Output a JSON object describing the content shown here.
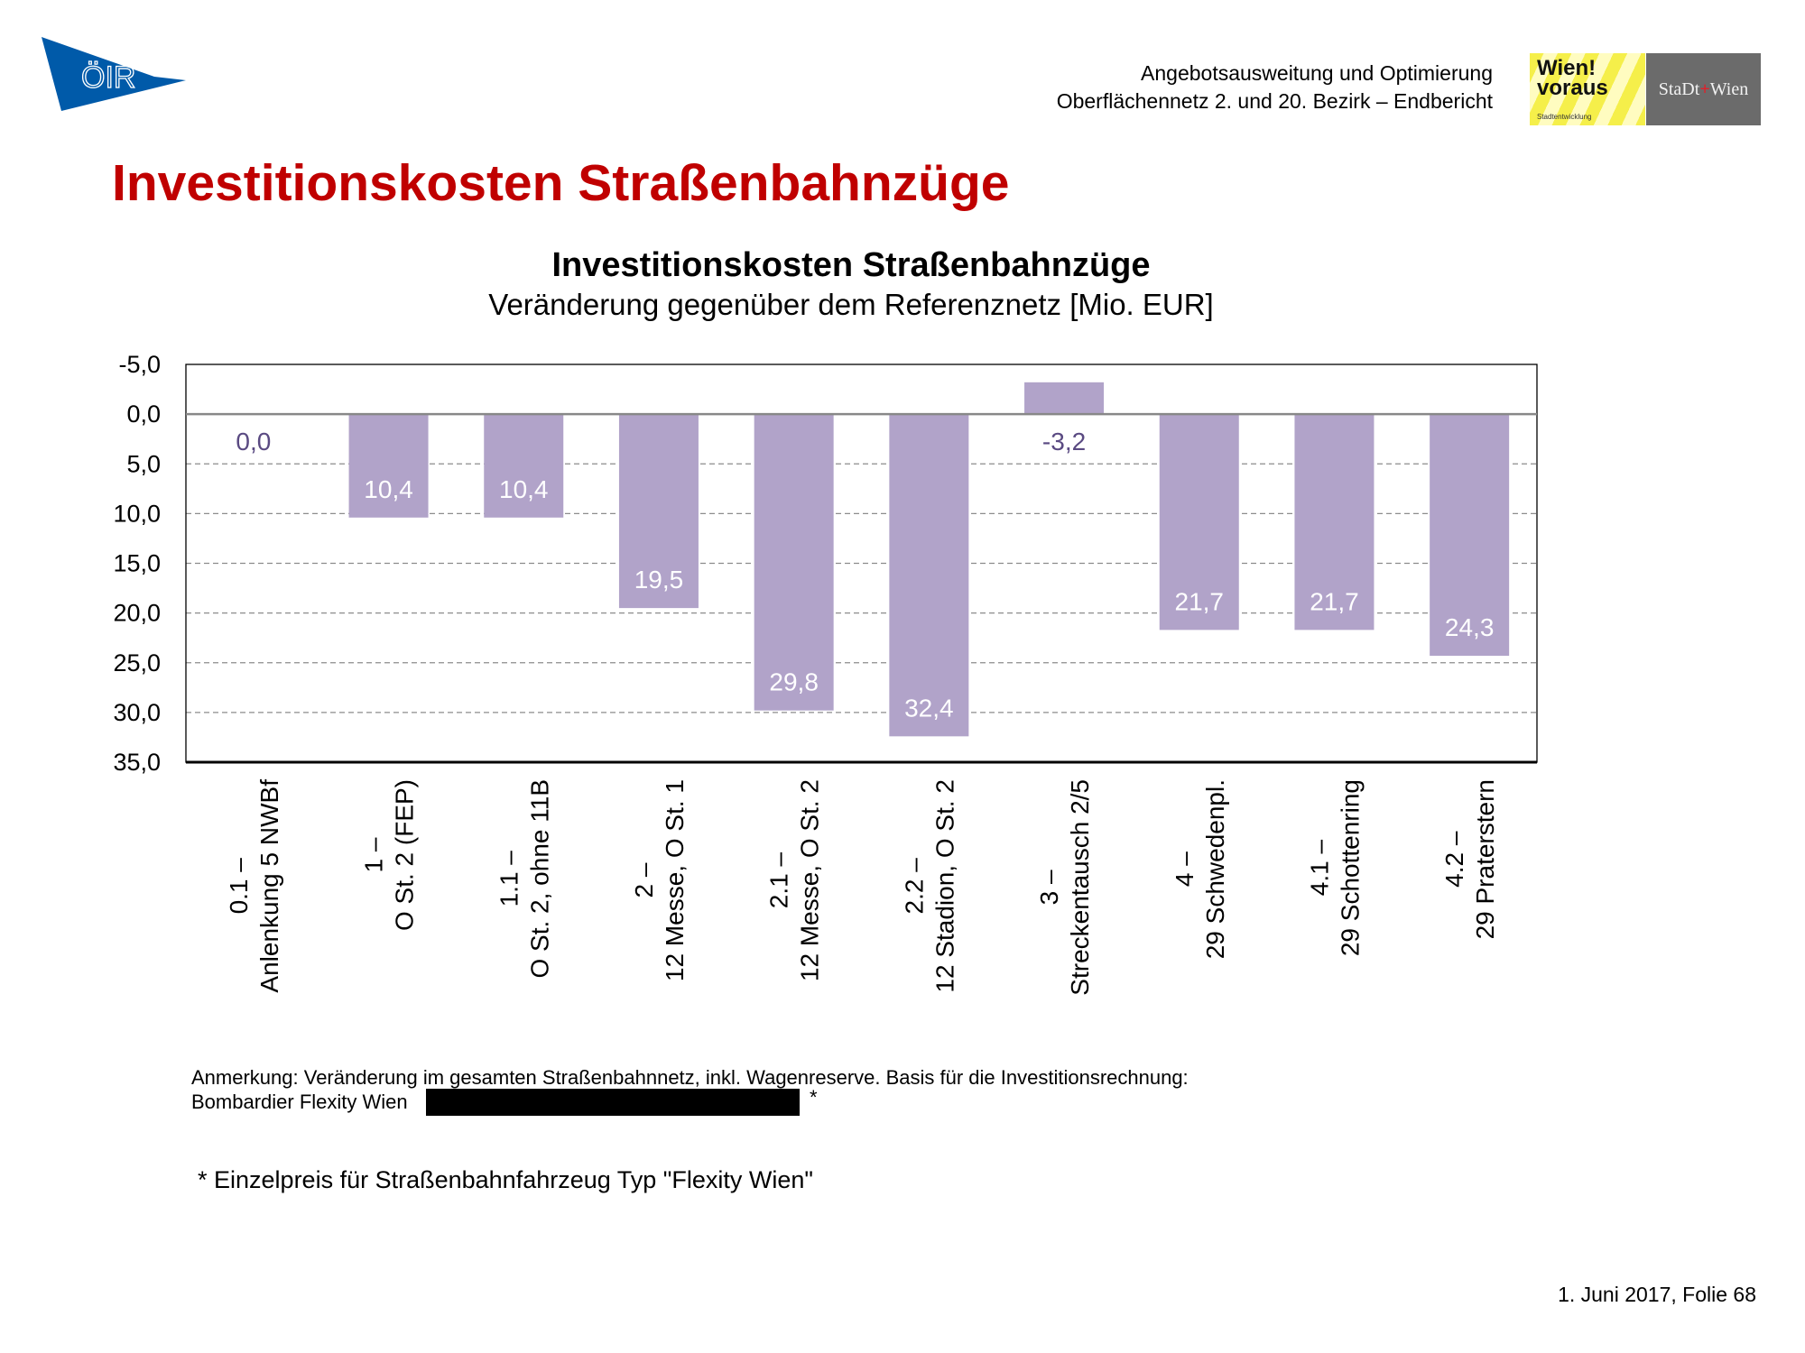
{
  "header": {
    "logo_text": "ÖIR",
    "line1": "Angebotsausweitung und Optimierung",
    "line2": "Oberflächennetz 2. und 20. Bezirk – Endbericht",
    "wien_logo": {
      "title_line1": "Wien!",
      "title_line2": "voraus",
      "sub": "Stadtentwicklung"
    },
    "stadt_logo": {
      "left": "StaDt",
      "cross": "+",
      "right": "Wien"
    }
  },
  "page_title": "Investitionskosten Straßenbahnzüge",
  "chart_data": {
    "type": "bar",
    "title": "Investitionskosten Straßenbahnzüge",
    "subtitle": "Veränderung gegenüber dem Referenznetz [Mio. EUR]",
    "xlabel": "",
    "ylabel": "",
    "ylim": [
      -5,
      35
    ],
    "y_inverted": true,
    "yticks": [
      -5,
      0,
      5,
      10,
      15,
      20,
      25,
      30,
      35
    ],
    "ytick_labels": [
      "-5,0",
      "0,0",
      "5,0",
      "10,0",
      "15,0",
      "20,0",
      "25,0",
      "30,0",
      "35,0"
    ],
    "grid": true,
    "categories": [
      [
        "0.1 –",
        "Anlenkung 5 NWBf"
      ],
      [
        "1 –",
        "O St. 2 (FEP)"
      ],
      [
        "1.1 –",
        "O St. 2, ohne 11B"
      ],
      [
        "2 –",
        "12 Messe, O St. 1"
      ],
      [
        "2.1 –",
        "12 Messe, O St. 2"
      ],
      [
        "2.2 –",
        "12 Stadion, O St. 2"
      ],
      [
        "3 –",
        "Streckentausch 2/5"
      ],
      [
        "4 –",
        "29 Schwedenpl."
      ],
      [
        "4.1 –",
        "29 Schottenring"
      ],
      [
        "4.2 –",
        "29 Praterstern"
      ]
    ],
    "values": [
      0.0,
      10.4,
      10.4,
      19.5,
      29.8,
      32.4,
      -3.2,
      21.7,
      21.7,
      24.3
    ],
    "data_labels": [
      "0,0",
      "10,4",
      "10,4",
      "19,5",
      "29,8",
      "32,4",
      "-3,2",
      "21,7",
      "21,7",
      "24,3"
    ],
    "bar_color": "#b1a3c9",
    "label_outside_color": "#5a4a82"
  },
  "notes": {
    "line1": "Anmerkung:  Veränderung  im gesamten Straßenbahnnetz,  inkl.  Wagenreserve.  Basis für die Investitionsrechnung:",
    "line2": "Bombardier Flexity Wien",
    "asterisk": "*"
  },
  "footnote": "* Einzelpreis für Straßenbahnfahrzeug Typ \"Flexity Wien\"",
  "footer": "1. Juni 2017, Folie 68"
}
